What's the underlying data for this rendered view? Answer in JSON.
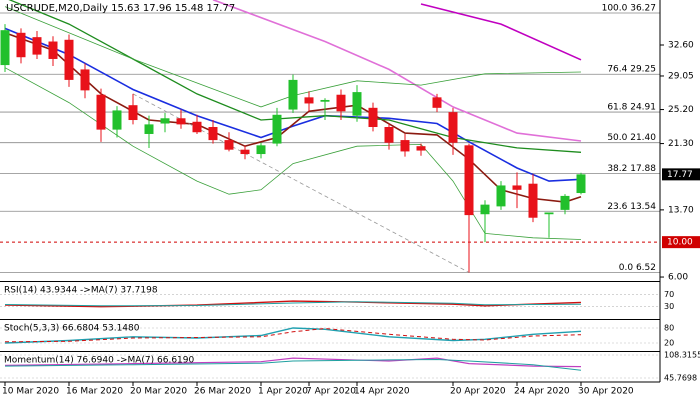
{
  "chart_data": {
    "type": "candlestick",
    "title": "USCRUDE,M20,Daily  15.63 17.96 15.48 17.77",
    "categories": [
      "10 Mar 2020",
      null,
      null,
      null,
      "16 Mar 2020",
      null,
      null,
      null,
      "20 Mar 2020",
      null,
      null,
      null,
      "26 Mar 2020",
      null,
      null,
      null,
      "1 Apr 2020",
      null,
      null,
      "7 Apr 2020",
      null,
      null,
      "14 Apr 2020",
      null,
      null,
      null,
      null,
      null,
      "20 Apr 2020",
      null,
      null,
      null,
      "24 Apr 2020",
      null,
      null,
      null,
      "30 Apr 2020"
    ],
    "open": [
      30.3,
      34.0,
      33.5,
      33.0,
      33.2,
      29.8,
      26.9,
      22.9,
      25.7,
      22.4,
      23.6,
      24.2,
      23.8,
      23.2,
      21.7,
      20.6,
      20.1,
      21.3,
      25.2,
      26.6,
      26.1,
      26.9,
      24.5,
      25.4,
      23.2,
      21.7,
      21.0,
      26.6,
      24.9,
      21.1,
      13.2,
      14.1,
      16.5,
      16.7,
      13.2,
      13.7,
      15.63
    ],
    "high": [
      35.0,
      34.5,
      34.2,
      33.6,
      33.8,
      30.5,
      27.6,
      25.6,
      27.0,
      24.5,
      24.8,
      25.2,
      24.6,
      24.0,
      22.6,
      21.1,
      21.4,
      25.4,
      29.2,
      27.3,
      26.5,
      27.5,
      28.0,
      26.0,
      23.6,
      22.4,
      21.3,
      27.0,
      25.4,
      21.3,
      14.8,
      17.0,
      18.0,
      17.8,
      13.4,
      15.5,
      17.96
    ],
    "low": [
      29.5,
      30.5,
      31.0,
      30.2,
      27.8,
      26.5,
      21.5,
      22.0,
      23.5,
      20.8,
      22.6,
      23.0,
      22.4,
      21.3,
      20.4,
      19.5,
      19.6,
      21.0,
      24.8,
      25.0,
      24.0,
      24.0,
      23.8,
      22.7,
      20.6,
      19.8,
      19.9,
      24.9,
      20.0,
      6.52,
      10.0,
      13.7,
      13.9,
      12.3,
      10.5,
      13.2,
      15.48
    ],
    "close": [
      34.3,
      31.2,
      31.5,
      31.0,
      28.6,
      27.4,
      22.9,
      25.1,
      24.0,
      23.5,
      24.2,
      23.5,
      22.6,
      21.7,
      20.6,
      20.1,
      21.1,
      24.6,
      28.6,
      25.9,
      26.3,
      25.0,
      27.2,
      23.2,
      21.4,
      20.4,
      20.5,
      25.4,
      21.4,
      13.1,
      14.3,
      16.5,
      16.0,
      12.8,
      13.4,
      15.3,
      17.77
    ],
    "up_color": "#22c02c",
    "down_color": "#e8121a",
    "ylim": [
      5.66,
      37.76
    ],
    "yticks": [
      {
        "value": 32.6,
        "label": "32.60"
      },
      {
        "value": 29.05,
        "label": "29.05"
      },
      {
        "value": 25.2,
        "label": "25.20"
      },
      {
        "value": 21.3,
        "label": "21.30"
      },
      {
        "value": 13.7,
        "label": "13.70"
      },
      {
        "value": 6,
        "label": "6.00"
      }
    ],
    "price_marker": {
      "value": 17.77,
      "label": "17.77"
    },
    "support_marker": {
      "value": 10,
      "label": "10.00",
      "color": "#d00000"
    },
    "fib_levels": [
      {
        "label": "100.0 36.27",
        "value": 36.27
      },
      {
        "label": "76.4 29.25",
        "value": 29.25
      },
      {
        "label": "61.8 24.91",
        "value": 24.91
      },
      {
        "label": "50.0 21.40",
        "value": 21.4
      },
      {
        "label": "38.2 17.88",
        "value": 17.88
      },
      {
        "label": "23.6 13.54",
        "value": 13.54
      },
      {
        "label": "0.0 6.52",
        "value": 6.52
      }
    ],
    "lines": [
      {
        "color": "#1a2ee0",
        "width": 1.6,
        "x": [
          0,
          4,
          8,
          12,
          16,
          18,
          20,
          24,
          27,
          29,
          32,
          34,
          36
        ],
        "values": [
          34.5,
          31.5,
          27.5,
          24.5,
          22,
          23.3,
          24.5,
          24.2,
          23.6,
          21.5,
          18.5,
          17,
          17.2
        ]
      },
      {
        "color": "#8b1a10",
        "width": 1.6,
        "x": [
          0,
          3,
          6,
          9,
          12,
          15,
          17,
          19,
          22,
          25,
          27,
          29,
          31,
          33,
          35,
          36
        ],
        "values": [
          34,
          32,
          27,
          24,
          23.5,
          21,
          22,
          25,
          25.7,
          22.5,
          22.3,
          19.5,
          16,
          15,
          14.6,
          15.2
        ]
      },
      {
        "color": "#1e8c1e",
        "width": 1.3,
        "x": [
          0,
          4,
          8,
          12,
          16,
          20,
          24,
          28,
          32,
          36
        ],
        "values": [
          38,
          35,
          31,
          27,
          24,
          24.5,
          24,
          22,
          20.8,
          20.3
        ]
      },
      {
        "color": "#e070d8",
        "width": 1.6,
        "x": [
          13,
          20,
          24,
          28,
          32,
          36
        ],
        "values": [
          37.8,
          33,
          29.8,
          25.5,
          22.5,
          21.6
        ]
      },
      {
        "color": "#c000c0",
        "width": 1.6,
        "x": [
          26,
          31,
          36
        ],
        "values": [
          37.3,
          35,
          30.9
        ]
      },
      {
        "color": "#3aa03a",
        "width": 0.8,
        "x": [
          0,
          8,
          16,
          18,
          22,
          26,
          30,
          36
        ],
        "values": [
          37,
          31,
          25.5,
          26.8,
          28.5,
          28,
          29.3,
          29.5
        ]
      },
      {
        "color": "#3aa03a",
        "width": 0.8,
        "x": [
          0,
          4,
          8,
          12,
          14,
          16,
          18,
          22,
          26,
          28,
          30,
          33,
          36
        ],
        "values": [
          30,
          26,
          21,
          17,
          15.5,
          16,
          19,
          21,
          21.2,
          17,
          11,
          10.5,
          10.3
        ]
      },
      {
        "color": "#999999",
        "width": 0.8,
        "style": "dashed",
        "x": [
          8,
          29
        ],
        "values": [
          27,
          6.52
        ]
      }
    ],
    "indicators": [
      {
        "title": "RSI(14) 43.9344 ->MA(7) 37.7198",
        "ylim": [
          0,
          100
        ],
        "yticks": [
          70,
          30
        ],
        "lines": [
          {
            "color": "#d01010",
            "width": 1.4,
            "x": [
              0,
              6,
              12,
              18,
              22,
              28,
              30,
              36
            ],
            "values": [
              35,
              30,
              35,
              48,
              45,
              38,
              33,
              43.9344
            ]
          },
          {
            "color": "#20a0a0",
            "width": 1,
            "x": [
              0,
              6,
              12,
              18,
              22,
              28,
              30,
              36
            ],
            "values": [
              37,
              33,
              34,
              42,
              46,
              41,
              36,
              37.7198
            ]
          }
        ]
      },
      {
        "title": "Stoch(5,3,3) 66.6804 53.1480",
        "ylim": [
          0,
          100
        ],
        "yticks": [
          80,
          20
        ],
        "lines": [
          {
            "color": "#20a0b0",
            "width": 1.4,
            "x": [
              0,
              4,
              8,
              12,
              16,
              18,
              20,
              24,
              28,
              30,
              33,
              36
            ],
            "values": [
              20,
              30,
              45,
              40,
              50,
              80,
              75,
              45,
              30,
              35,
              55,
              66.6804
            ]
          },
          {
            "color": "#d01010",
            "width": 1,
            "style": "dashed",
            "x": [
              0,
              4,
              8,
              12,
              16,
              18,
              20,
              24,
              28,
              30,
              33,
              36
            ],
            "values": [
              25,
              27,
              40,
              42,
              45,
              65,
              78,
              55,
              35,
              32,
              48,
              53.148
            ]
          }
        ]
      },
      {
        "title": "Momentum(14) 76.6940 ->MA(7) 66.6190",
        "ylim": [
          45.7698,
          108.3155
        ],
        "yticks": [
          {
            "value": 108.3155,
            "label": "108.3155"
          },
          {
            "value": 45.7698,
            "label": "45.7698"
          }
        ],
        "lines": [
          {
            "color": "#c040c0",
            "width": 1.2,
            "x": [
              0,
              8,
              16,
              18,
              24,
              27,
              29,
              33,
              36
            ],
            "values": [
              80,
              85,
              90,
              100,
              92,
              100,
              85,
              78,
              76.694
            ]
          },
          {
            "color": "#20a0a0",
            "width": 1,
            "x": [
              0,
              8,
              16,
              18,
              24,
              27,
              29,
              33,
              36
            ],
            "values": [
              78,
              82,
              86,
              92,
              95,
              96,
              92,
              82,
              66.619
            ]
          }
        ]
      }
    ]
  }
}
